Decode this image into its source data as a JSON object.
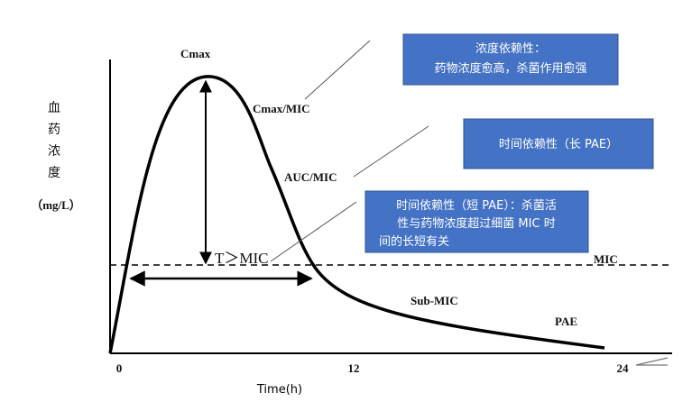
{
  "axes": {
    "y_label_chars": [
      "血",
      "药",
      "浓",
      "度"
    ],
    "y_unit": "（mg/L）",
    "x_label": "Time(h)",
    "x_ticks": [
      "0",
      "12",
      "24"
    ]
  },
  "curve_labels": {
    "cmax": "Cmax",
    "cmax_mic": "Cmax/MIC",
    "auc_mic": "AUC/MIC",
    "t_mic": "T＞MIC",
    "mic": "MIC",
    "sub_mic": "Sub-MIC",
    "pae": "PAE"
  },
  "boxes": [
    {
      "lines": [
        "浓度依赖性：",
        "药物浓度愈高，杀菌作用愈强"
      ]
    },
    {
      "lines": [
        "时间依赖性（长 PAE）"
      ]
    },
    {
      "lines": [
        "时间依赖性（短 PAE）：杀菌活",
        "性与药物浓度超过细菌 MIC 时",
        "间的长短有关"
      ]
    }
  ]
}
